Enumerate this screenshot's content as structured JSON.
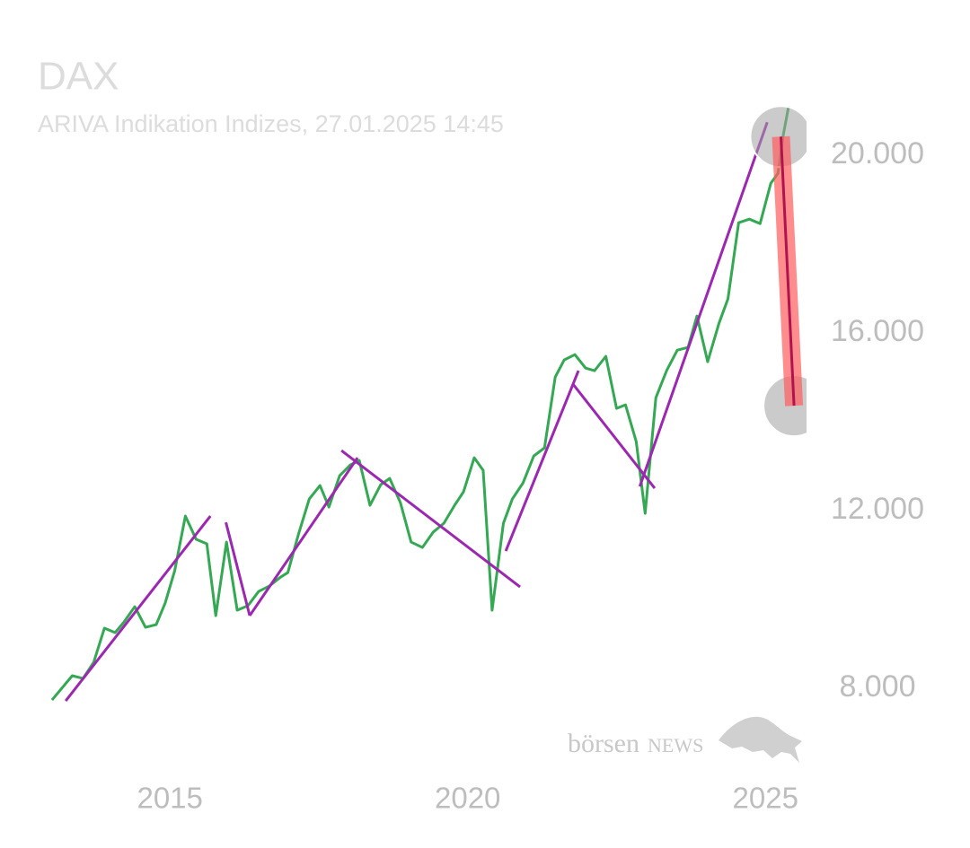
{
  "chart_data": {
    "type": "line",
    "title": "DAX",
    "subtitle": "ARIVA Indikation Indizes, 27.01.2025 14:45",
    "x": [
      2013.02,
      2013.36,
      2013.54,
      2013.72,
      2013.9,
      2014.08,
      2014.23,
      2014.41,
      2014.59,
      2014.77,
      2014.92,
      2015.08,
      2015.26,
      2015.44,
      2015.62,
      2015.77,
      2015.95,
      2016.13,
      2016.31,
      2016.49,
      2016.67,
      2016.86,
      2016.98,
      2017.16,
      2017.34,
      2017.52,
      2017.67,
      2017.85,
      2018.03,
      2018.18,
      2018.36,
      2018.54,
      2018.69,
      2018.87,
      2019.05,
      2019.24,
      2019.42,
      2019.6,
      2019.78,
      2019.93,
      2020.11,
      2020.26,
      2020.41,
      2020.6,
      2020.75,
      2020.93,
      2021.11,
      2021.29,
      2021.47,
      2021.62,
      2021.8,
      2021.98,
      2022.13,
      2022.32,
      2022.5,
      2022.65,
      2022.83,
      2022.98,
      2023.16,
      2023.34,
      2023.52,
      2023.7,
      2023.85,
      2024.03,
      2024.22,
      2024.37,
      2024.55,
      2024.73,
      2024.91,
      2025.09,
      2025.21,
      2025.3,
      2025.39
    ],
    "series": [
      {
        "color": "#34a853",
        "values": [
          7737,
          8283,
          8222,
          8586,
          9354,
          9253,
          9495,
          9838,
          9374,
          9434,
          9919,
          10646,
          11879,
          11354,
          11253,
          9636,
          11293,
          9758,
          9859,
          10182,
          10303,
          10505,
          10606,
          11475,
          12263,
          12566,
          12081,
          12788,
          13030,
          13131,
          12121,
          12586,
          12727,
          12182,
          11293,
          11172,
          11515,
          11717,
          12121,
          12424,
          13192,
          12909,
          9758,
          11717,
          12263,
          12626,
          13232,
          13414,
          15010,
          15394,
          15515,
          15212,
          15152,
          15475,
          14303,
          14384,
          13556,
          11939,
          14545,
          15152,
          15616,
          15677,
          16384,
          15354,
          16222,
          16768,
          18485,
          18566,
          18465,
          19374,
          19596,
          20465,
          21111
        ]
      }
    ],
    "trendline_color": "#9c27b0",
    "trendlines": [
      {
        "x": [
          2013.25,
          2015.68
        ],
        "values": [
          7717,
          11879
        ]
      },
      {
        "x": [
          2015.94,
          2016.34
        ],
        "values": [
          11737,
          9636
        ]
      },
      {
        "x": [
          2016.34,
          2018.15
        ],
        "values": [
          9636,
          13192
        ]
      },
      {
        "x": [
          2017.88,
          2020.88
        ],
        "values": [
          13354,
          10283
        ]
      },
      {
        "x": [
          2020.64,
          2021.86
        ],
        "values": [
          11091,
          15152
        ]
      },
      {
        "x": [
          2021.77,
          2023.14
        ],
        "values": [
          14848,
          12505
        ]
      },
      {
        "x": [
          2022.89,
          2025.03
        ],
        "values": [
          12545,
          20747
        ]
      }
    ],
    "highlight": {
      "color": "#ff5c5c",
      "x": [
        2025.26,
        2025.48
      ],
      "values": [
        20424,
        14364
      ]
    },
    "xlim": [
      2012.75,
      2025.69
    ],
    "ylim": [
      7000,
      21500
    ],
    "xticks": [
      2015,
      2020,
      2025
    ],
    "yticks": [
      {
        "value": 8000,
        "label": "8.000"
      },
      {
        "value": 12000,
        "label": "12.000"
      },
      {
        "value": 16000,
        "label": "16.000"
      },
      {
        "value": 20000,
        "label": "20.000"
      }
    ],
    "watermark": [
      "börsen",
      "NEWS"
    ]
  }
}
